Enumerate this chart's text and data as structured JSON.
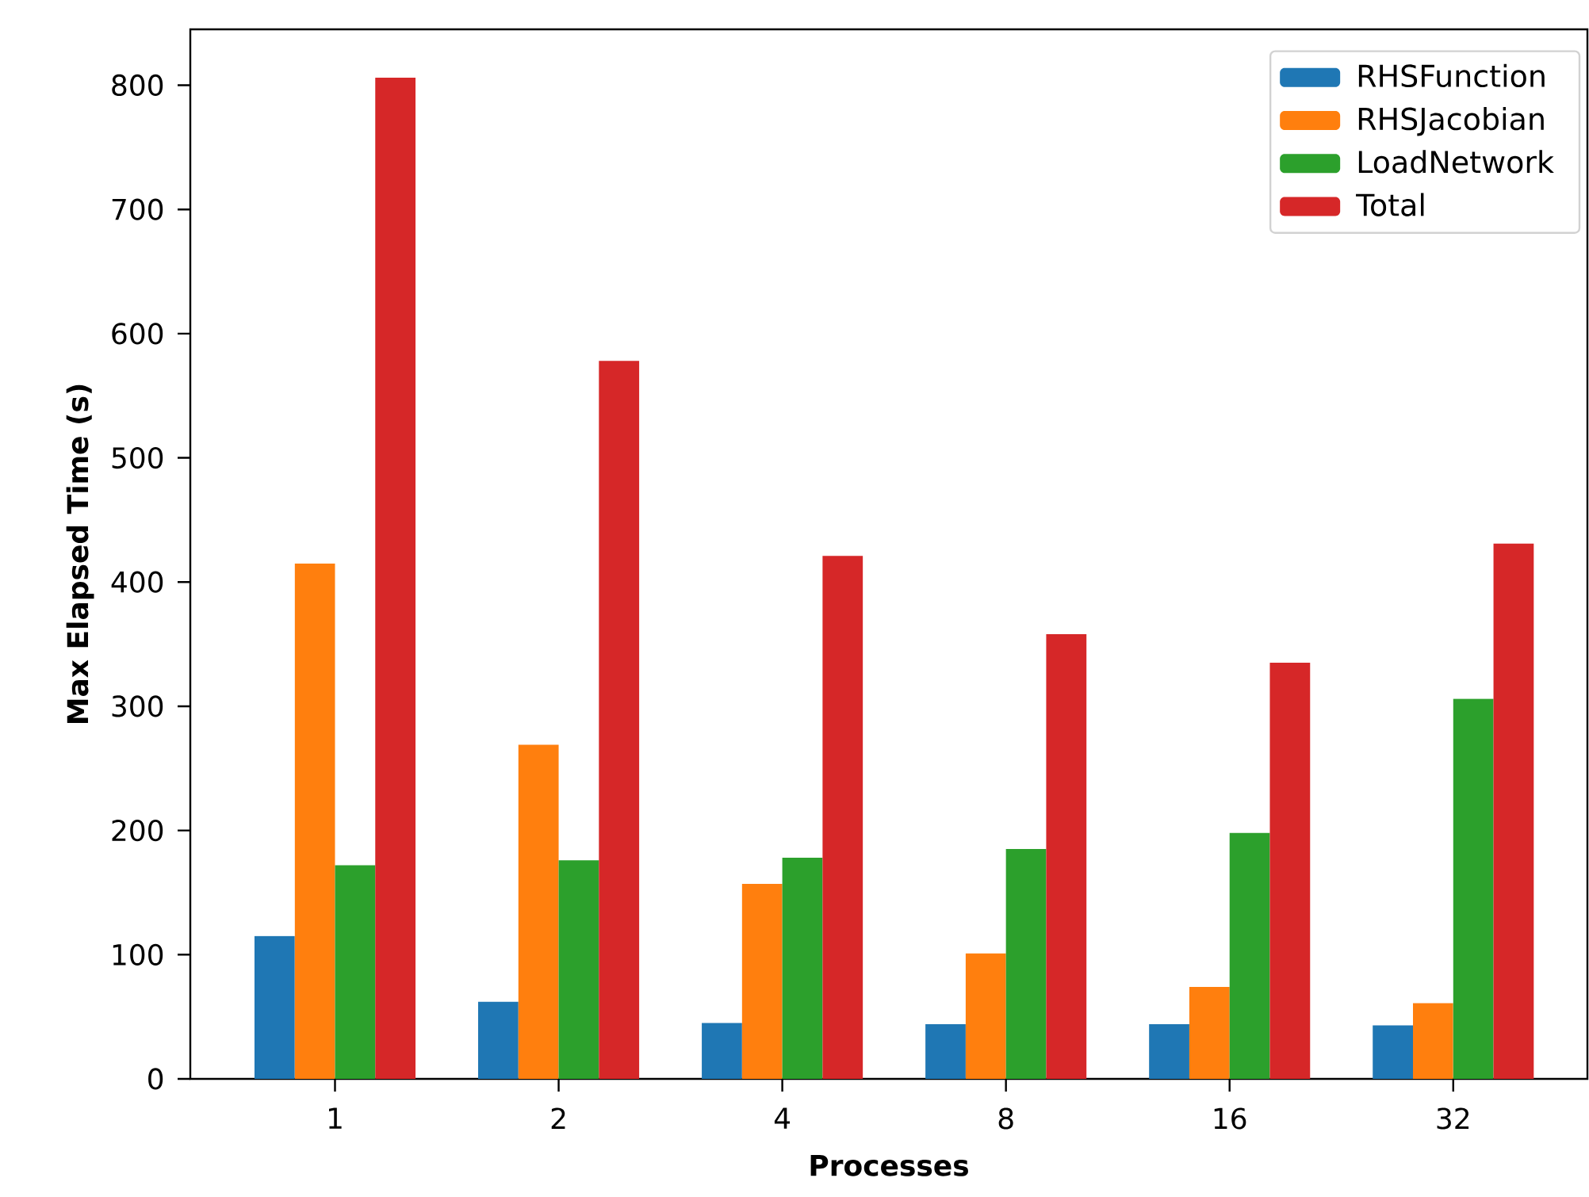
{
  "chart_data": {
    "type": "bar",
    "xlabel": "Processes",
    "ylabel": "Max Elapsed Time (s)",
    "categories": [
      "1",
      "2",
      "4",
      "8",
      "16",
      "32"
    ],
    "series": [
      {
        "name": "RHSFunction",
        "color": "#1f77b4",
        "values": [
          115,
          62,
          45,
          44,
          44,
          43
        ]
      },
      {
        "name": "RHSJacobian",
        "color": "#ff7f0e",
        "values": [
          415,
          269,
          157,
          101,
          74,
          61
        ]
      },
      {
        "name": "LoadNetwork",
        "color": "#2ca02c",
        "values": [
          172,
          176,
          178,
          185,
          198,
          306
        ]
      },
      {
        "name": "Total",
        "color": "#d62728",
        "values": [
          806,
          578,
          421,
          358,
          335,
          431
        ]
      }
    ],
    "ylim": [
      0,
      845
    ],
    "yticks": [
      0,
      100,
      200,
      300,
      400,
      500,
      600,
      700,
      800
    ],
    "grid": false,
    "legend": "top right"
  }
}
